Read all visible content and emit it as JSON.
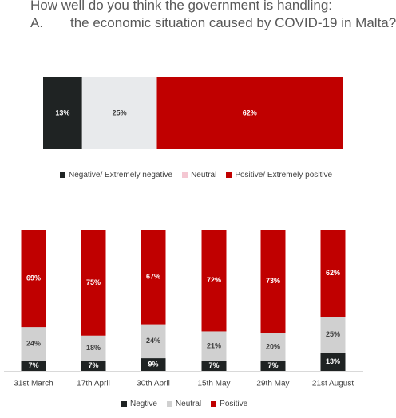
{
  "title": {
    "line1": "How well do you think the government is handling:",
    "line2_num": "A.",
    "line2_text": "the economic situation caused by COVID-19 in Malta?"
  },
  "colors": {
    "negative": "#1f2323",
    "neutral_top": "#e8eaec",
    "neutral_bottom": "#d0d0d0",
    "positive": "#c00000"
  },
  "chart_data": [
    {
      "type": "bar",
      "orientation": "horizontal",
      "stacked": true,
      "series": [
        {
          "name": "Negative/ Extremely negative",
          "values": [
            13
          ],
          "labels": [
            "13%"
          ]
        },
        {
          "name": "Neutral",
          "values": [
            25
          ],
          "labels": [
            "25%"
          ]
        },
        {
          "name": "Positive/ Extremely positive",
          "values": [
            62
          ],
          "labels": [
            "62%"
          ]
        }
      ],
      "legend": "bottom"
    },
    {
      "type": "bar",
      "orientation": "vertical",
      "stacked": true,
      "categories": [
        "31st March",
        "17th April",
        "30th April",
        "15th May",
        "29th May",
        "21st August"
      ],
      "series": [
        {
          "name": "Negtive",
          "values": [
            7,
            7,
            9,
            7,
            7,
            13
          ],
          "labels": [
            "7%",
            "7%",
            "9%",
            "7%",
            "7%",
            "13%"
          ]
        },
        {
          "name": "Neutral",
          "values": [
            24,
            18,
            24,
            21,
            20,
            25
          ],
          "labels": [
            "24%",
            "18%",
            "24%",
            "21%",
            "20%",
            "25%"
          ]
        },
        {
          "name": "Positive",
          "values": [
            69,
            75,
            67,
            72,
            73,
            62
          ],
          "labels": [
            "69%",
            "75%",
            "67%",
            "72%",
            "73%",
            "62%"
          ]
        }
      ],
      "legend": "bottom"
    }
  ]
}
